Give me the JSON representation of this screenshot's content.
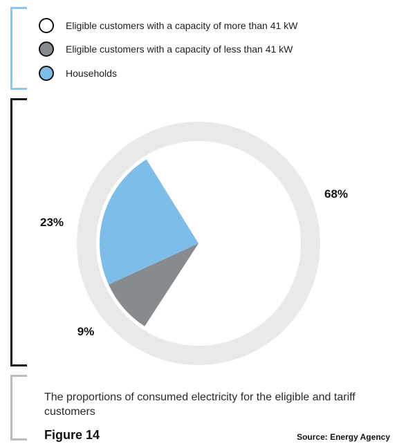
{
  "chart_data": {
    "type": "pie",
    "categories": [
      "Eligible customers with a capacity of more than 41 kW",
      "Eligible customers with a capacity of less than 41 kW",
      "Households"
    ],
    "values": [
      68,
      9,
      23
    ],
    "data_labels": [
      "68%",
      "9%",
      "23%"
    ],
    "colors": [
      "#e9e9ea",
      "#878a8e",
      "#7dbde8"
    ],
    "legend_position": "top-left"
  },
  "legend": {
    "items": [
      {
        "label": "Eligible customers with a capacity of more than 41 kW",
        "swatch_color": "#ffffff"
      },
      {
        "label": "Eligible customers with a capacity of less than 41 kW",
        "swatch_color": "#878a8e"
      },
      {
        "label": "Households",
        "swatch_color": "#7dbde8"
      }
    ]
  },
  "caption": {
    "text": "The proportions of consumed electricity for the eligible and tariff customers",
    "figure": "Figure 14",
    "source": "Source: Energy Agency"
  },
  "colors": {
    "legend_bracket": "#8ec5ea",
    "chart_bracket": "#111111",
    "caption_bracket": "#b9bcbf",
    "ring": "#e9e9ea"
  }
}
